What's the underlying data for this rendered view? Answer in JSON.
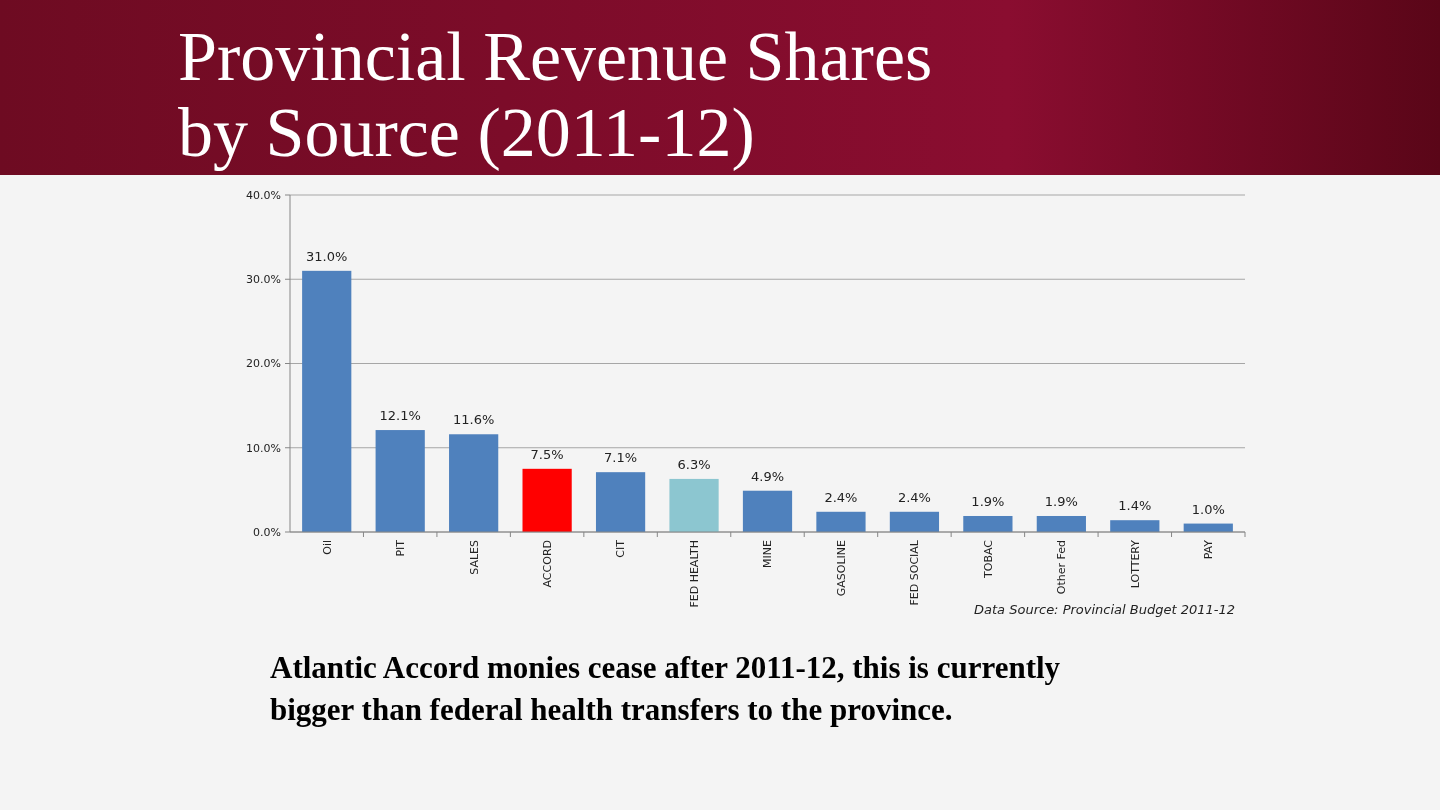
{
  "chart_data": {
    "type": "bar",
    "title": "Provincial Revenue Shares by Source (2011-12)",
    "categories": [
      "Oil",
      "PIT",
      "SALES",
      "ACCORD",
      "CIT",
      "FED HEALTH",
      "MINE",
      "GASOLINE",
      "FED SOCIAL",
      "TOBAC",
      "Other Fed",
      "LOTTERY",
      "PAY"
    ],
    "values": [
      31.0,
      12.1,
      11.6,
      7.5,
      7.1,
      6.3,
      4.9,
      2.4,
      2.4,
      1.9,
      1.9,
      1.4,
      1.0
    ],
    "colors": [
      "#4f81bd",
      "#4f81bd",
      "#4f81bd",
      "#ff0000",
      "#4f81bd",
      "#8cc6d0",
      "#4f81bd",
      "#4f81bd",
      "#4f81bd",
      "#4f81bd",
      "#4f81bd",
      "#4f81bd",
      "#4f81bd"
    ],
    "value_labels": [
      "31.0%",
      "12.1%",
      "11.6%",
      "7.5%",
      "7.1%",
      "6.3%",
      "4.9%",
      "2.4%",
      "2.4%",
      "1.9%",
      "1.9%",
      "1.4%",
      "1.0%"
    ],
    "ylim": [
      0,
      40
    ],
    "yticks": [
      {
        "value": 0,
        "label": "0.0%"
      },
      {
        "value": 10,
        "label": "10.0%"
      },
      {
        "value": 20,
        "label": "20.0%"
      },
      {
        "value": 30,
        "label": "30.0%"
      },
      {
        "value": 40,
        "label": "40.0%"
      }
    ],
    "grid": "y",
    "annotations": [
      "Data Source: Provincial Budget 2011-12",
      "Atlantic Accord monies cease after 2011-12, this is currently bigger than federal health transfers to the province."
    ]
  }
}
